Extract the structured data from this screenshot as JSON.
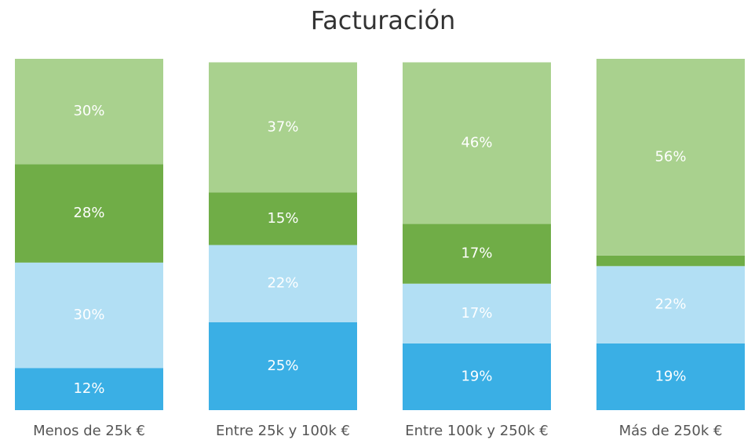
{
  "chart_data": {
    "type": "stacked_bar",
    "title": "Facturación",
    "categories": [
      "Menos de 25k €",
      "Entre 25k y 100k €",
      "Entre 100k y 250k €",
      "Más de 250k €"
    ],
    "ylim": [
      0,
      100
    ],
    "series": [
      {
        "color": "#3aafe5",
        "values": [
          12,
          25,
          19,
          19
        ],
        "value_labels": [
          "12%",
          "25%",
          "19%",
          "19%"
        ]
      },
      {
        "color": "#b2dff4",
        "values": [
          30,
          22,
          17,
          22
        ],
        "value_labels": [
          "30%",
          "22%",
          "17%",
          "22%"
        ]
      },
      {
        "color": "#70ad47",
        "values": [
          28,
          15,
          17,
          3
        ],
        "value_labels": [
          "28%",
          "15%",
          "17%",
          null
        ]
      },
      {
        "color": "#a9d18e",
        "values": [
          30,
          37,
          46,
          56
        ],
        "value_labels": [
          "30%",
          "37%",
          "46%",
          "56%"
        ]
      }
    ]
  }
}
